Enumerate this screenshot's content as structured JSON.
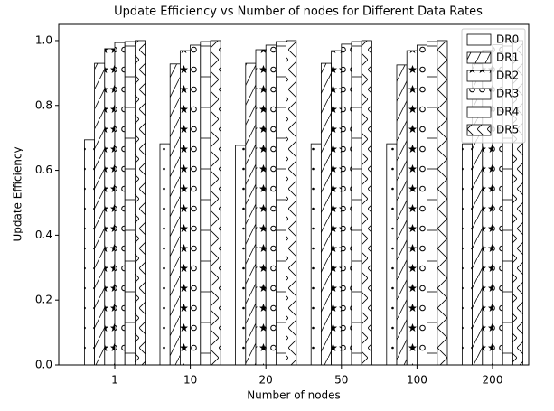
{
  "chart_data": {
    "type": "bar",
    "title": "Update Efficiency vs Number of nodes for Different Data Rates",
    "xlabel": "Number of nodes",
    "ylabel": "Update Efficiency",
    "categories": [
      "1",
      "10",
      "20",
      "50",
      "100",
      "200"
    ],
    "series": [
      {
        "name": "DR0",
        "color": "#ffffff",
        "hatch": ".",
        "values": [
          0.694,
          0.682,
          0.677,
          0.682,
          0.682,
          0.682
        ]
      },
      {
        "name": "DR1",
        "color": "#ffffff",
        "hatch": "/",
        "values": [
          0.93,
          0.928,
          0.93,
          0.93,
          0.925,
          0.928
        ]
      },
      {
        "name": "DR2",
        "color": "#ffffff",
        "hatch": "*",
        "values": [
          0.975,
          0.969,
          0.972,
          0.969,
          0.969,
          0.97
        ]
      },
      {
        "name": "DR3",
        "color": "#ffffff",
        "hatch": "o",
        "values": [
          0.994,
          0.986,
          0.986,
          0.989,
          0.986,
          0.987
        ]
      },
      {
        "name": "DR4",
        "color": "#ffffff",
        "hatch": "-",
        "values": [
          0.997,
          0.997,
          0.997,
          0.997,
          0.997,
          0.997
        ]
      },
      {
        "name": "DR5",
        "color": "#ffffff",
        "hatch": "x",
        "values": [
          1.0,
          1.0,
          1.0,
          1.0,
          1.0,
          1.0
        ]
      }
    ],
    "ylim": [
      0,
      1.05
    ],
    "yticks": [
      {
        "value": 0,
        "label": "0.0"
      },
      0.2,
      0.4,
      0.6,
      0.8,
      {
        "value": 1,
        "label": "1.0"
      }
    ],
    "legend": "upper right"
  }
}
